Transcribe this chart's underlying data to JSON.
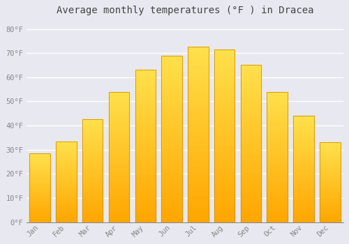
{
  "title": "Average monthly temperatures (°F ) in Dracea",
  "months": [
    "Jan",
    "Feb",
    "Mar",
    "Apr",
    "May",
    "Jun",
    "Jul",
    "Aug",
    "Sep",
    "Oct",
    "Nov",
    "Dec"
  ],
  "values": [
    28.5,
    33.5,
    42.5,
    54.0,
    63.0,
    69.0,
    72.5,
    71.5,
    65.0,
    54.0,
    44.0,
    33.0
  ],
  "bar_color_top": "#FFD966",
  "bar_color_bottom": "#FFA500",
  "bar_edge_color": "#D4930A",
  "background_color": "#E8E8F0",
  "plot_bg_color": "#E8E8F0",
  "grid_color": "#FFFFFF",
  "tick_color": "#888888",
  "title_color": "#444444",
  "ylim": [
    0,
    84
  ],
  "yticks": [
    0,
    10,
    20,
    30,
    40,
    50,
    60,
    70,
    80
  ],
  "ytick_labels": [
    "0°F",
    "10°F",
    "20°F",
    "30°F",
    "40°F",
    "50°F",
    "60°F",
    "70°F",
    "80°F"
  ],
  "title_fontsize": 10,
  "tick_fontsize": 7.5,
  "font_family": "monospace"
}
